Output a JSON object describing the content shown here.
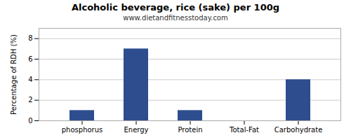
{
  "chart_data": {
    "type": "bar",
    "title": "Alcoholic beverage, rice (sake) per 100g",
    "subtitle": "www.dietandfitnesstoday.com",
    "categories": [
      "phosphorus",
      "Energy",
      "Protein",
      "Total-Fat",
      "Carbohydrate"
    ],
    "values": [
      1.0,
      7.0,
      1.0,
      0.0,
      4.0
    ],
    "color": "#2d4d8e",
    "ylabel": "Percentage of RDH (%)",
    "ylim": [
      0,
      9
    ],
    "yticks": [
      0,
      2,
      4,
      6,
      8
    ],
    "grid": true
  }
}
